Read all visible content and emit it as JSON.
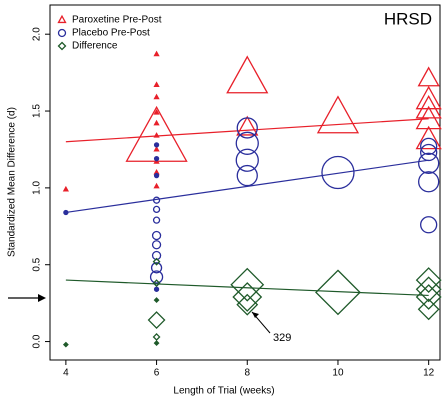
{
  "chart_data": {
    "type": "scatter",
    "x_label": "Length of Trial (weeks)",
    "y_label": "Standardized Mean Difference (d)",
    "annotations": [
      "HRSD",
      "329"
    ],
    "xlim": [
      3.65,
      12.25
    ],
    "xticks": [
      4,
      6,
      8,
      10,
      12
    ],
    "ylim": [
      -0.12,
      2.19
    ],
    "yticks": [
      {
        "value": 0,
        "label": "0.0"
      },
      {
        "value": 0.5,
        "label": "0.5"
      },
      {
        "value": 1,
        "label": "1.0"
      },
      {
        "value": 1.5,
        "label": "1.5"
      },
      {
        "value": 2,
        "label": "2.0"
      }
    ],
    "legend": "top-left",
    "series": [
      {
        "name": "Paroxetine Pre-Post",
        "color": "#e8202a",
        "marker": "triangle",
        "x": [
          4,
          6,
          6,
          6,
          6,
          6,
          6,
          6,
          6,
          6,
          6,
          6,
          8,
          8,
          10,
          12,
          12,
          12,
          12,
          12
        ],
        "values": [
          0.99,
          1.87,
          1.67,
          1.59,
          1.49,
          1.42,
          1.34,
          1.25,
          1.17,
          1.1,
          1.01,
          1.31,
          1.71,
          1.39,
          1.45,
          1.71,
          1.57,
          1.51,
          1.44,
          1.31
        ],
        "sizes": [
          2,
          2,
          2,
          2,
          2,
          2,
          2,
          2,
          2,
          2,
          2,
          30,
          20,
          10,
          20,
          10,
          12,
          12,
          12,
          12
        ],
        "trend": {
          "x": [
            4,
            12
          ],
          "values": [
            1.3,
            1.45
          ]
        }
      },
      {
        "name": "Placebo Pre-Post",
        "color": "#2a2e9c",
        "marker": "circle",
        "x": [
          4,
          6,
          6,
          6,
          6,
          6,
          6,
          6,
          6,
          6,
          6,
          6,
          6,
          8,
          8,
          8,
          8,
          10,
          12,
          12,
          12,
          12,
          12
        ],
        "values": [
          0.84,
          1.28,
          1.19,
          1.08,
          0.92,
          0.86,
          0.79,
          0.69,
          0.63,
          0.56,
          0.48,
          0.42,
          0.34,
          1.39,
          1.29,
          1.18,
          1.08,
          1.1,
          1.27,
          1.23,
          1.16,
          1.04,
          0.76
        ],
        "sizes": [
          2,
          2,
          2,
          2,
          3,
          3,
          3,
          4,
          4,
          4,
          5,
          6,
          2,
          10,
          11,
          11,
          10,
          16,
          8,
          8,
          10,
          10,
          8
        ],
        "trend": {
          "x": [
            4,
            12
          ],
          "values": [
            0.84,
            1.18
          ]
        }
      },
      {
        "name": "Difference",
        "color": "#1f5a2a",
        "marker": "diamond",
        "x": [
          4,
          6,
          6,
          6,
          6,
          6,
          6,
          8,
          8,
          8,
          10,
          12,
          12,
          12,
          12
        ],
        "values": [
          -0.02,
          0.52,
          0.38,
          0.27,
          0.14,
          0.03,
          -0.01,
          0.37,
          0.29,
          0.24,
          0.32,
          0.4,
          0.34,
          0.29,
          0.21
        ],
        "sizes": [
          2,
          3,
          3,
          2,
          8,
          3,
          2,
          16,
          14,
          10,
          22,
          12,
          12,
          12,
          10
        ],
        "trend": {
          "x": [
            4,
            12
          ],
          "values": [
            0.4,
            0.3
          ]
        }
      }
    ]
  }
}
